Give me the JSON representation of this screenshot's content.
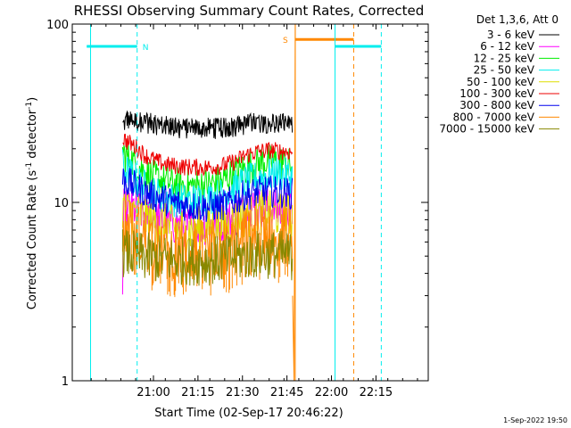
{
  "chart_data": {
    "type": "line",
    "title": "RHESSI Observing Summary Count Rates, Corrected",
    "xlabel": "Start Time (02-Sep-17 20:46:22)",
    "ylabel_main": "Corrected Count Rate (s",
    "ylabel_sup1": "-1",
    "ylabel_mid": " detector",
    "ylabel_sup2": "-1",
    "ylabel_end": ")",
    "yscale": "log",
    "ylim": [
      1,
      100
    ],
    "y_ticks": [
      {
        "v": 1,
        "label": "1"
      },
      {
        "v": 10,
        "label": "10"
      },
      {
        "v": 100,
        "label": "100"
      }
    ],
    "x_ticks": [
      {
        "m": 21.0,
        "label": "21:00"
      },
      {
        "m": 36.0,
        "label": "21:15"
      },
      {
        "m": 51.0,
        "label": "21:30"
      },
      {
        "m": 66.0,
        "label": "21:45"
      },
      {
        "m": 81.0,
        "label": "22:00"
      },
      {
        "m": 96.0,
        "label": "22:15"
      }
    ],
    "legend_placement": "top-right-outside",
    "legend_title": "Det 1,3,6, Att 0",
    "series": [
      {
        "name": "3 - 6 keV",
        "color": "#000000",
        "points": [
          [
            10.6,
            27
          ],
          [
            12.0,
            29
          ],
          [
            18.0,
            28
          ],
          [
            24.0,
            27
          ],
          [
            30.0,
            26
          ],
          [
            36.0,
            26
          ],
          [
            44.0,
            26
          ],
          [
            50.0,
            27
          ],
          [
            56.0,
            28
          ],
          [
            62.0,
            28
          ],
          [
            67.8,
            27
          ]
        ]
      },
      {
        "name": "6 - 12 keV",
        "color": "#ff00ff",
        "points": [
          [
            10.6,
            3.1
          ],
          [
            10.9,
            9
          ],
          [
            14.0,
            9.3
          ],
          [
            20.0,
            8.5
          ],
          [
            26.0,
            7.7
          ],
          [
            32.0,
            7.3
          ],
          [
            38.0,
            7.5
          ],
          [
            44.0,
            7.7
          ],
          [
            48.0,
            8.2
          ],
          [
            52.0,
            9.2
          ],
          [
            58.0,
            9.5
          ],
          [
            64.0,
            9.0
          ],
          [
            67.8,
            8.8
          ]
        ]
      },
      {
        "name": "12 - 25 keV",
        "color": "#00ee00",
        "points": [
          [
            10.6,
            19
          ],
          [
            12.0,
            18
          ],
          [
            16.0,
            16
          ],
          [
            20.0,
            14
          ],
          [
            26.0,
            13
          ],
          [
            32.0,
            12.3
          ],
          [
            38.0,
            12.5
          ],
          [
            44.0,
            13
          ],
          [
            48.0,
            14.5
          ],
          [
            52.0,
            15.5
          ],
          [
            58.0,
            17
          ],
          [
            62.0,
            17
          ],
          [
            67.8,
            16
          ]
        ]
      },
      {
        "name": "25 - 50 keV",
        "color": "#00eeee",
        "points": [
          [
            10.6,
            16
          ],
          [
            12.0,
            15
          ],
          [
            16.0,
            13
          ],
          [
            20.0,
            11.5
          ],
          [
            26.0,
            10.5
          ],
          [
            32.0,
            10.2
          ],
          [
            38.0,
            10.4
          ],
          [
            44.0,
            11
          ],
          [
            48.0,
            12
          ],
          [
            52.0,
            13
          ],
          [
            58.0,
            14
          ],
          [
            62.0,
            14.5
          ],
          [
            67.8,
            14
          ]
        ]
      },
      {
        "name": "50 - 100 keV",
        "color": "#dddd00",
        "points": [
          [
            10.6,
            9.5
          ],
          [
            12.0,
            9.0
          ],
          [
            16.0,
            8.5
          ],
          [
            20.0,
            8.0
          ],
          [
            26.0,
            7.3
          ],
          [
            32.0,
            7.0
          ],
          [
            38.0,
            7.2
          ],
          [
            44.0,
            7.3
          ],
          [
            48.0,
            7.8
          ],
          [
            52.0,
            8.5
          ],
          [
            58.0,
            8.8
          ],
          [
            64.0,
            8.5
          ],
          [
            67.8,
            8.3
          ]
        ]
      },
      {
        "name": "100 - 300 keV",
        "color": "#ee0000",
        "points": [
          [
            10.6,
            23
          ],
          [
            12.0,
            22
          ],
          [
            15.0,
            20.5
          ],
          [
            18.0,
            18.5
          ],
          [
            22.0,
            17
          ],
          [
            26.0,
            16.2
          ],
          [
            32.0,
            15.8
          ],
          [
            38.0,
            15.7
          ],
          [
            44.0,
            16
          ],
          [
            48.0,
            16.8
          ],
          [
            52.0,
            18.3
          ],
          [
            56.0,
            19.3
          ],
          [
            60.0,
            19.6
          ],
          [
            64.0,
            19.4
          ],
          [
            67.8,
            19.1
          ]
        ]
      },
      {
        "name": "300 - 800 keV",
        "color": "#0000ee",
        "points": [
          [
            10.6,
            13.5
          ],
          [
            12.0,
            13
          ],
          [
            16.0,
            12
          ],
          [
            20.0,
            11
          ],
          [
            26.0,
            10.2
          ],
          [
            32.0,
            9.6
          ],
          [
            38.0,
            9.4
          ],
          [
            44.0,
            9.6
          ],
          [
            48.0,
            10.2
          ],
          [
            52.0,
            11
          ],
          [
            58.0,
            11.6
          ],
          [
            64.0,
            11.4
          ],
          [
            67.8,
            11.2
          ]
        ]
      },
      {
        "name": "800 - 7000 keV",
        "color": "#ff8800",
        "points": [
          [
            10.6,
            7.5
          ],
          [
            12.0,
            7.2
          ],
          [
            16.0,
            6.5
          ],
          [
            20.0,
            6.0
          ],
          [
            26.0,
            5.5
          ],
          [
            32.0,
            5.3
          ],
          [
            38.0,
            5.3
          ],
          [
            44.0,
            5.4
          ],
          [
            48.0,
            5.8
          ],
          [
            52.0,
            6.4
          ],
          [
            58.0,
            6.6
          ],
          [
            64.0,
            6.5
          ],
          [
            67.8,
            6.3
          ]
        ]
      },
      {
        "name": "7000 - 15000 keV",
        "color": "#888800",
        "points": [
          [
            10.6,
            5.2
          ],
          [
            16.0,
            5.0
          ],
          [
            24.0,
            4.8
          ],
          [
            32.0,
            4.7
          ],
          [
            40.0,
            4.7
          ],
          [
            48.0,
            4.9
          ],
          [
            56.0,
            5.1
          ],
          [
            64.0,
            5.1
          ],
          [
            67.8,
            5.0
          ]
        ]
      }
    ],
    "flags": [
      {
        "label": "N",
        "color": "#00eeee",
        "y": 75,
        "m_start": -1.5,
        "m_end": 15.5,
        "lines": [
          {
            "m": -0.2,
            "style": "solid"
          },
          {
            "m": 15.5,
            "style": "dashed"
          }
        ]
      },
      {
        "label": "S",
        "color": "#ff8800",
        "y": 82,
        "m_start": 68.8,
        "m_end": 88.5,
        "lines": [
          {
            "m": 68.8,
            "style": "solid"
          },
          {
            "m": 88.5,
            "style": "dashed"
          }
        ]
      },
      {
        "label": "",
        "color": "#00eeee",
        "y": 75,
        "m_start": 82.2,
        "m_end": 97.8,
        "lines": [
          {
            "m": 82.2,
            "style": "solid"
          },
          {
            "m": 97.8,
            "style": "dashed"
          }
        ]
      }
    ],
    "timestamp": "1-Sep-2022 19:50"
  }
}
